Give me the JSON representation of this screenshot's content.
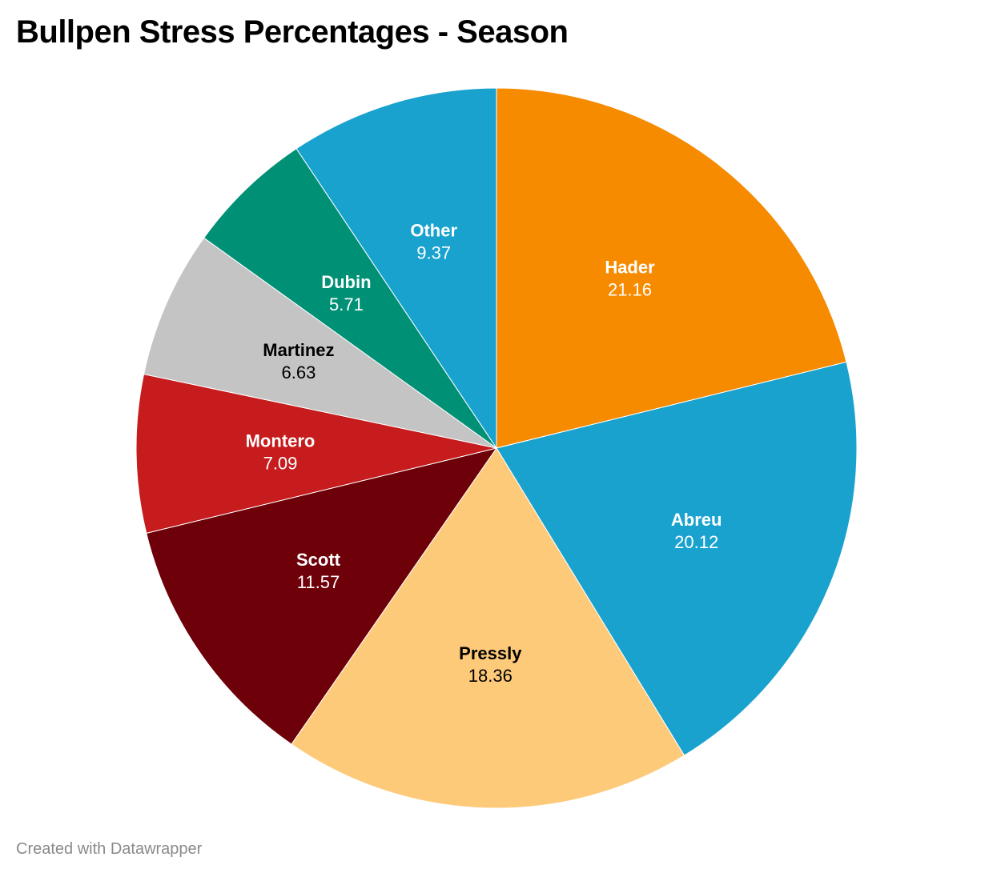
{
  "title": "Bullpen Stress Percentages - Season",
  "footer": "Created with Datawrapper",
  "chart_data": {
    "type": "pie",
    "title": "Bullpen Stress Percentages - Season",
    "start_angle": "top, clockwise",
    "slices": [
      {
        "label": "Hader",
        "value": 21.16,
        "value_text": "21.16",
        "color": "#f68b00",
        "text_color": "#ffffff"
      },
      {
        "label": "Abreu",
        "value": 20.12,
        "value_text": "20.12",
        "color": "#1aa2cf",
        "text_color": "#ffffff"
      },
      {
        "label": "Pressly",
        "value": 18.36,
        "value_text": "18.36",
        "color": "#fdca7a",
        "text_color": "#000000"
      },
      {
        "label": "Scott",
        "value": 11.57,
        "value_text": "11.57",
        "color": "#6e0009",
        "text_color": "#ffffff"
      },
      {
        "label": "Montero",
        "value": 7.09,
        "value_text": "7.09",
        "color": "#c61c1d",
        "text_color": "#ffffff"
      },
      {
        "label": "Martinez",
        "value": 6.63,
        "value_text": "6.63",
        "color": "#c4c4c4",
        "text_color": "#000000"
      },
      {
        "label": "Dubin",
        "value": 5.71,
        "value_text": "5.71",
        "color": "#009076",
        "text_color": "#ffffff"
      },
      {
        "label": "Other",
        "value": 9.37,
        "value_text": "9.37",
        "color": "#1aa2cf",
        "text_color": "#ffffff"
      }
    ]
  }
}
